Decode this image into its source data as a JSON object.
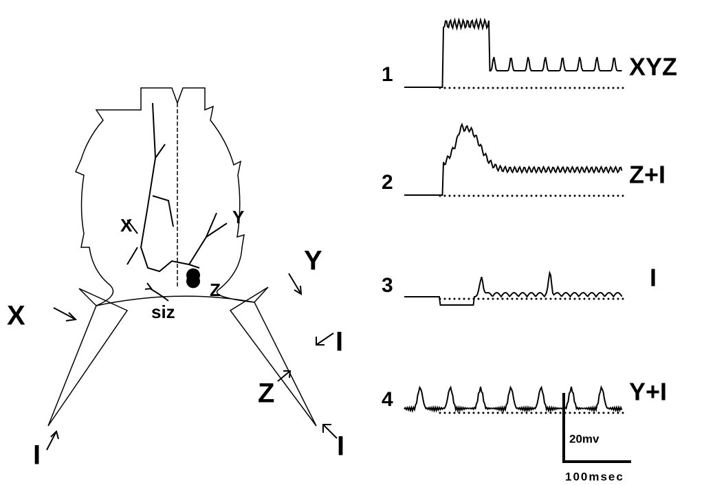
{
  "diagram": {
    "labels": [
      "X",
      "Y",
      "Z",
      "siz"
    ],
    "arrows": [
      "X",
      "Y",
      "I",
      "Z",
      "I",
      "I"
    ]
  },
  "traces": [
    {
      "number": "1",
      "label": "XYZ"
    },
    {
      "number": "2",
      "label": "Z+I"
    },
    {
      "number": "3",
      "label": "I"
    },
    {
      "number": "4",
      "label": "Y+I"
    }
  ],
  "scale_bar": {
    "voltage": "20mv",
    "time": "100msec"
  }
}
